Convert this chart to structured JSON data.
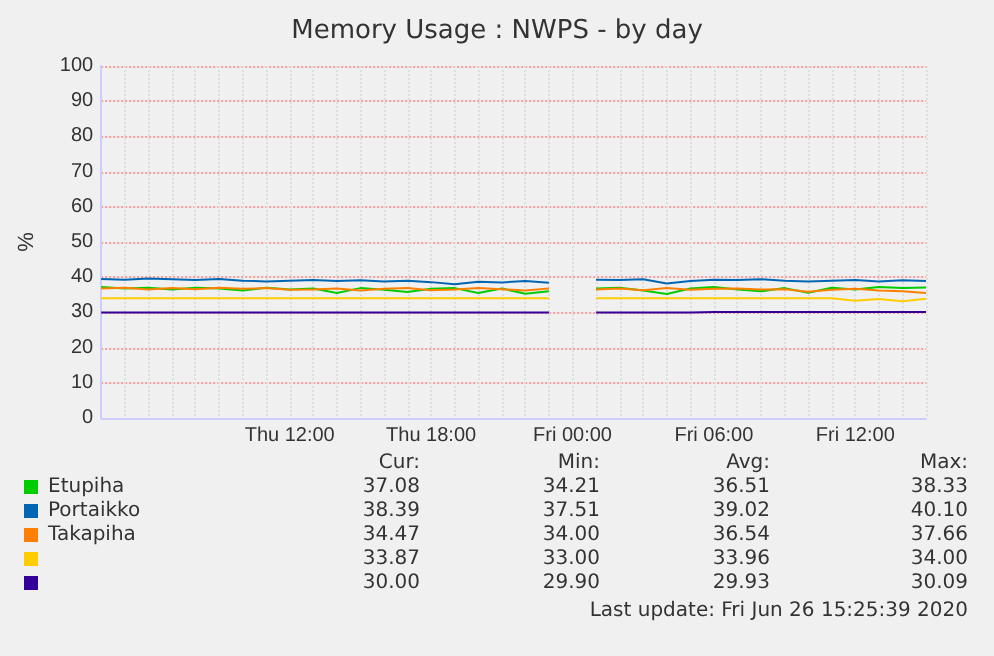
{
  "chart_data": {
    "type": "line",
    "title": "Memory Usage : NWPS - by day",
    "ylabel": "%",
    "categories": [
      null,
      null,
      null,
      null,
      null,
      null,
      null,
      null,
      "Thu 12:00",
      null,
      null,
      null,
      null,
      null,
      "Thu 18:00",
      null,
      null,
      null,
      null,
      null,
      "Fri 00:00",
      null,
      null,
      null,
      null,
      null,
      "Fri 06:00",
      null,
      null,
      null,
      null,
      null,
      "Fri 12:00",
      null,
      null,
      null
    ],
    "ylim": [
      0,
      100
    ],
    "yticks": [
      0,
      10,
      20,
      30,
      40,
      50,
      60,
      70,
      80,
      90,
      100
    ],
    "grid": true,
    "legend": "bottom",
    "series": [
      {
        "name": "Etupiha",
        "color": "#00cc00",
        "values": [
          37.2,
          36.8,
          37.0,
          36.5,
          37.0,
          36.8,
          36.2,
          37.0,
          36.5,
          36.8,
          35.5,
          36.9,
          36.4,
          35.8,
          36.7,
          36.9,
          35.5,
          36.8,
          35.3,
          36.0,
          null,
          36.8,
          37.0,
          36.2,
          35.2,
          36.8,
          37.2,
          36.5,
          36.0,
          36.9,
          35.6,
          37.0,
          36.5,
          37.2,
          36.9,
          37.1
        ]
      },
      {
        "name": "Portaikko",
        "color": "#0066b3",
        "values": [
          39.5,
          39.3,
          39.6,
          39.4,
          39.2,
          39.5,
          39.0,
          38.8,
          39.0,
          39.2,
          38.9,
          39.1,
          38.8,
          39.0,
          38.6,
          38.0,
          38.7,
          38.5,
          38.9,
          38.4,
          null,
          39.3,
          39.2,
          39.4,
          38.2,
          38.9,
          39.3,
          39.2,
          39.4,
          39.0,
          38.8,
          39.0,
          39.2,
          38.8,
          39.1,
          38.9
        ]
      },
      {
        "name": "Takapiha",
        "color": "#ff8000",
        "values": [
          36.8,
          37.0,
          36.5,
          36.9,
          36.6,
          37.0,
          36.7,
          36.9,
          36.4,
          36.5,
          36.8,
          36.2,
          36.7,
          36.9,
          36.3,
          36.5,
          36.9,
          36.6,
          36.2,
          36.8,
          null,
          36.5,
          36.8,
          36.3,
          36.9,
          36.4,
          36.7,
          36.8,
          36.5,
          36.6,
          35.9,
          36.4,
          36.7,
          36.2,
          36.0,
          35.5
        ]
      },
      {
        "color": "#ffcc00",
        "values": [
          34.0,
          34.0,
          34.0,
          34.0,
          34.0,
          34.0,
          34.0,
          34.0,
          34.0,
          34.0,
          34.0,
          34.0,
          34.0,
          34.0,
          34.0,
          34.0,
          34.0,
          34.0,
          34.0,
          34.0,
          null,
          34.0,
          34.0,
          34.0,
          34.0,
          34.0,
          34.0,
          34.0,
          34.0,
          34.0,
          34.0,
          34.0,
          33.3,
          33.8,
          33.2,
          33.9
        ]
      },
      {
        "color": "#330099",
        "values": [
          30.0,
          30.0,
          30.0,
          30.0,
          30.0,
          30.0,
          30.0,
          30.0,
          30.0,
          30.0,
          30.0,
          30.0,
          30.0,
          30.0,
          30.0,
          30.0,
          30.0,
          30.0,
          30.0,
          30.0,
          null,
          30.0,
          30.0,
          30.0,
          30.0,
          30.0,
          30.1,
          30.1,
          30.1,
          30.1,
          30.1,
          30.1,
          30.1,
          30.1,
          30.1,
          30.1
        ]
      }
    ],
    "annotations": [
      "Cur:",
      "Min:",
      "Avg:",
      "Max:",
      "37.08",
      "34.21",
      "36.51",
      "38.33",
      "38.39",
      "37.51",
      "39.02",
      "40.10",
      "34.47",
      "34.00",
      "36.54",
      "37.66",
      "33.87",
      "33.00",
      "33.96",
      "34.00",
      "30.00",
      "29.90",
      "29.93",
      "30.09",
      "Last update:  Fri Jun 26 15:25:39 2020"
    ]
  }
}
